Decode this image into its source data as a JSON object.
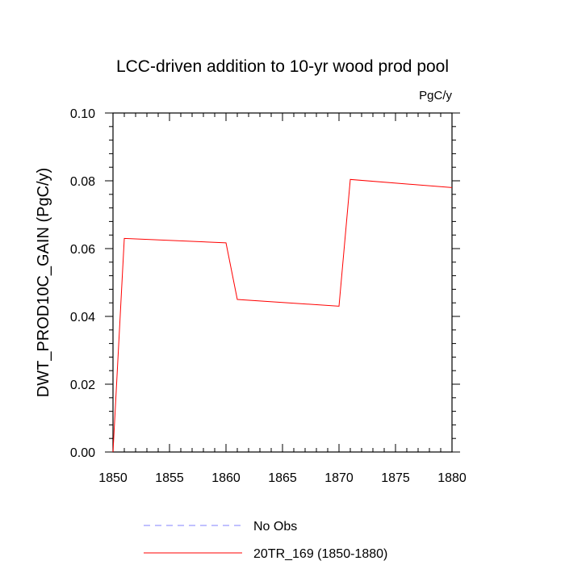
{
  "chart_data": {
    "type": "line",
    "title": "LCC-driven addition to 10-yr wood prod pool",
    "units": "PgC/y",
    "ylabel": "DWT_PROD10C_GAIN  (PgC/y)",
    "xlabel": "",
    "xlim": [
      1850,
      1880
    ],
    "ylim": [
      0.0,
      0.1
    ],
    "x_ticks": [
      1850,
      1855,
      1860,
      1865,
      1870,
      1875,
      1880
    ],
    "x_tick_labels": [
      "1850",
      "1855",
      "1860",
      "1865",
      "1870",
      "1875",
      "1880"
    ],
    "y_ticks": [
      0.0,
      0.02,
      0.04,
      0.06,
      0.08,
      0.1
    ],
    "y_tick_labels": [
      "0.00",
      "0.02",
      "0.04",
      "0.06",
      "0.08",
      "0.10"
    ],
    "grid": false,
    "legend_position": "bottom",
    "series": [
      {
        "name": "No Obs",
        "color": "#8080ff",
        "dash": "dashed",
        "x": [],
        "y": []
      },
      {
        "name": "20TR_169 (1850-1880)",
        "color": "#ff0000",
        "dash": "solid",
        "x": [
          1850,
          1851,
          1860,
          1861,
          1870,
          1871,
          1880
        ],
        "y": [
          0.0,
          0.063,
          0.0617,
          0.045,
          0.043,
          0.0804,
          0.078
        ]
      }
    ]
  }
}
